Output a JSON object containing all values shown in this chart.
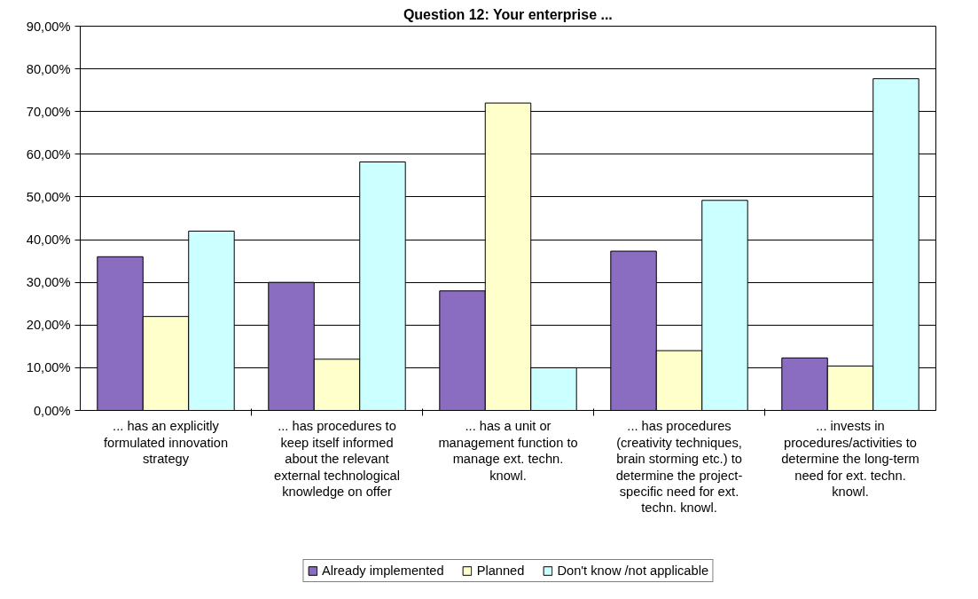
{
  "chart_data": {
    "type": "bar",
    "title": "Question 12: Your enterprise ...",
    "categories": [
      "... has an explicitly formulated innovation strategy",
      "... has procedures to keep itself informed about the relevant external technological knowledge on offer",
      "... has a unit or management function to manage ext. techn. knowl.",
      "... has procedures (creativity techniques, brain storming etc.) to determine the project-specific need for ext. techn. knowl.",
      "... invests in procedures/activities to determine the long-term need for ext. techn. knowl."
    ],
    "series": [
      {
        "name": "Already implemented",
        "color": "#8a6cc0",
        "values": [
          36,
          30,
          28,
          37.3,
          12.3
        ]
      },
      {
        "name": "Planned",
        "color": "#ffffcc",
        "values": [
          22,
          12,
          72,
          14,
          10.4
        ]
      },
      {
        "name": "Don't know /not applicable",
        "color": "#ccffff",
        "values": [
          42,
          58.2,
          10,
          49.2,
          77.7
        ]
      }
    ],
    "ylim": [
      0,
      90
    ],
    "yticks": [
      {
        "value": 0,
        "label": "0,00%"
      },
      {
        "value": 10,
        "label": "10,00%"
      },
      {
        "value": 20,
        "label": "20,00%"
      },
      {
        "value": 30,
        "label": "30,00%"
      },
      {
        "value": 40,
        "label": "40,00%"
      },
      {
        "value": 50,
        "label": "50,00%"
      },
      {
        "value": 60,
        "label": "60,00%"
      },
      {
        "value": 70,
        "label": "70,00%"
      },
      {
        "value": 80,
        "label": "80,00%"
      },
      {
        "value": 90,
        "label": "90,00%"
      }
    ],
    "grid": "y",
    "legend": "bottom"
  }
}
